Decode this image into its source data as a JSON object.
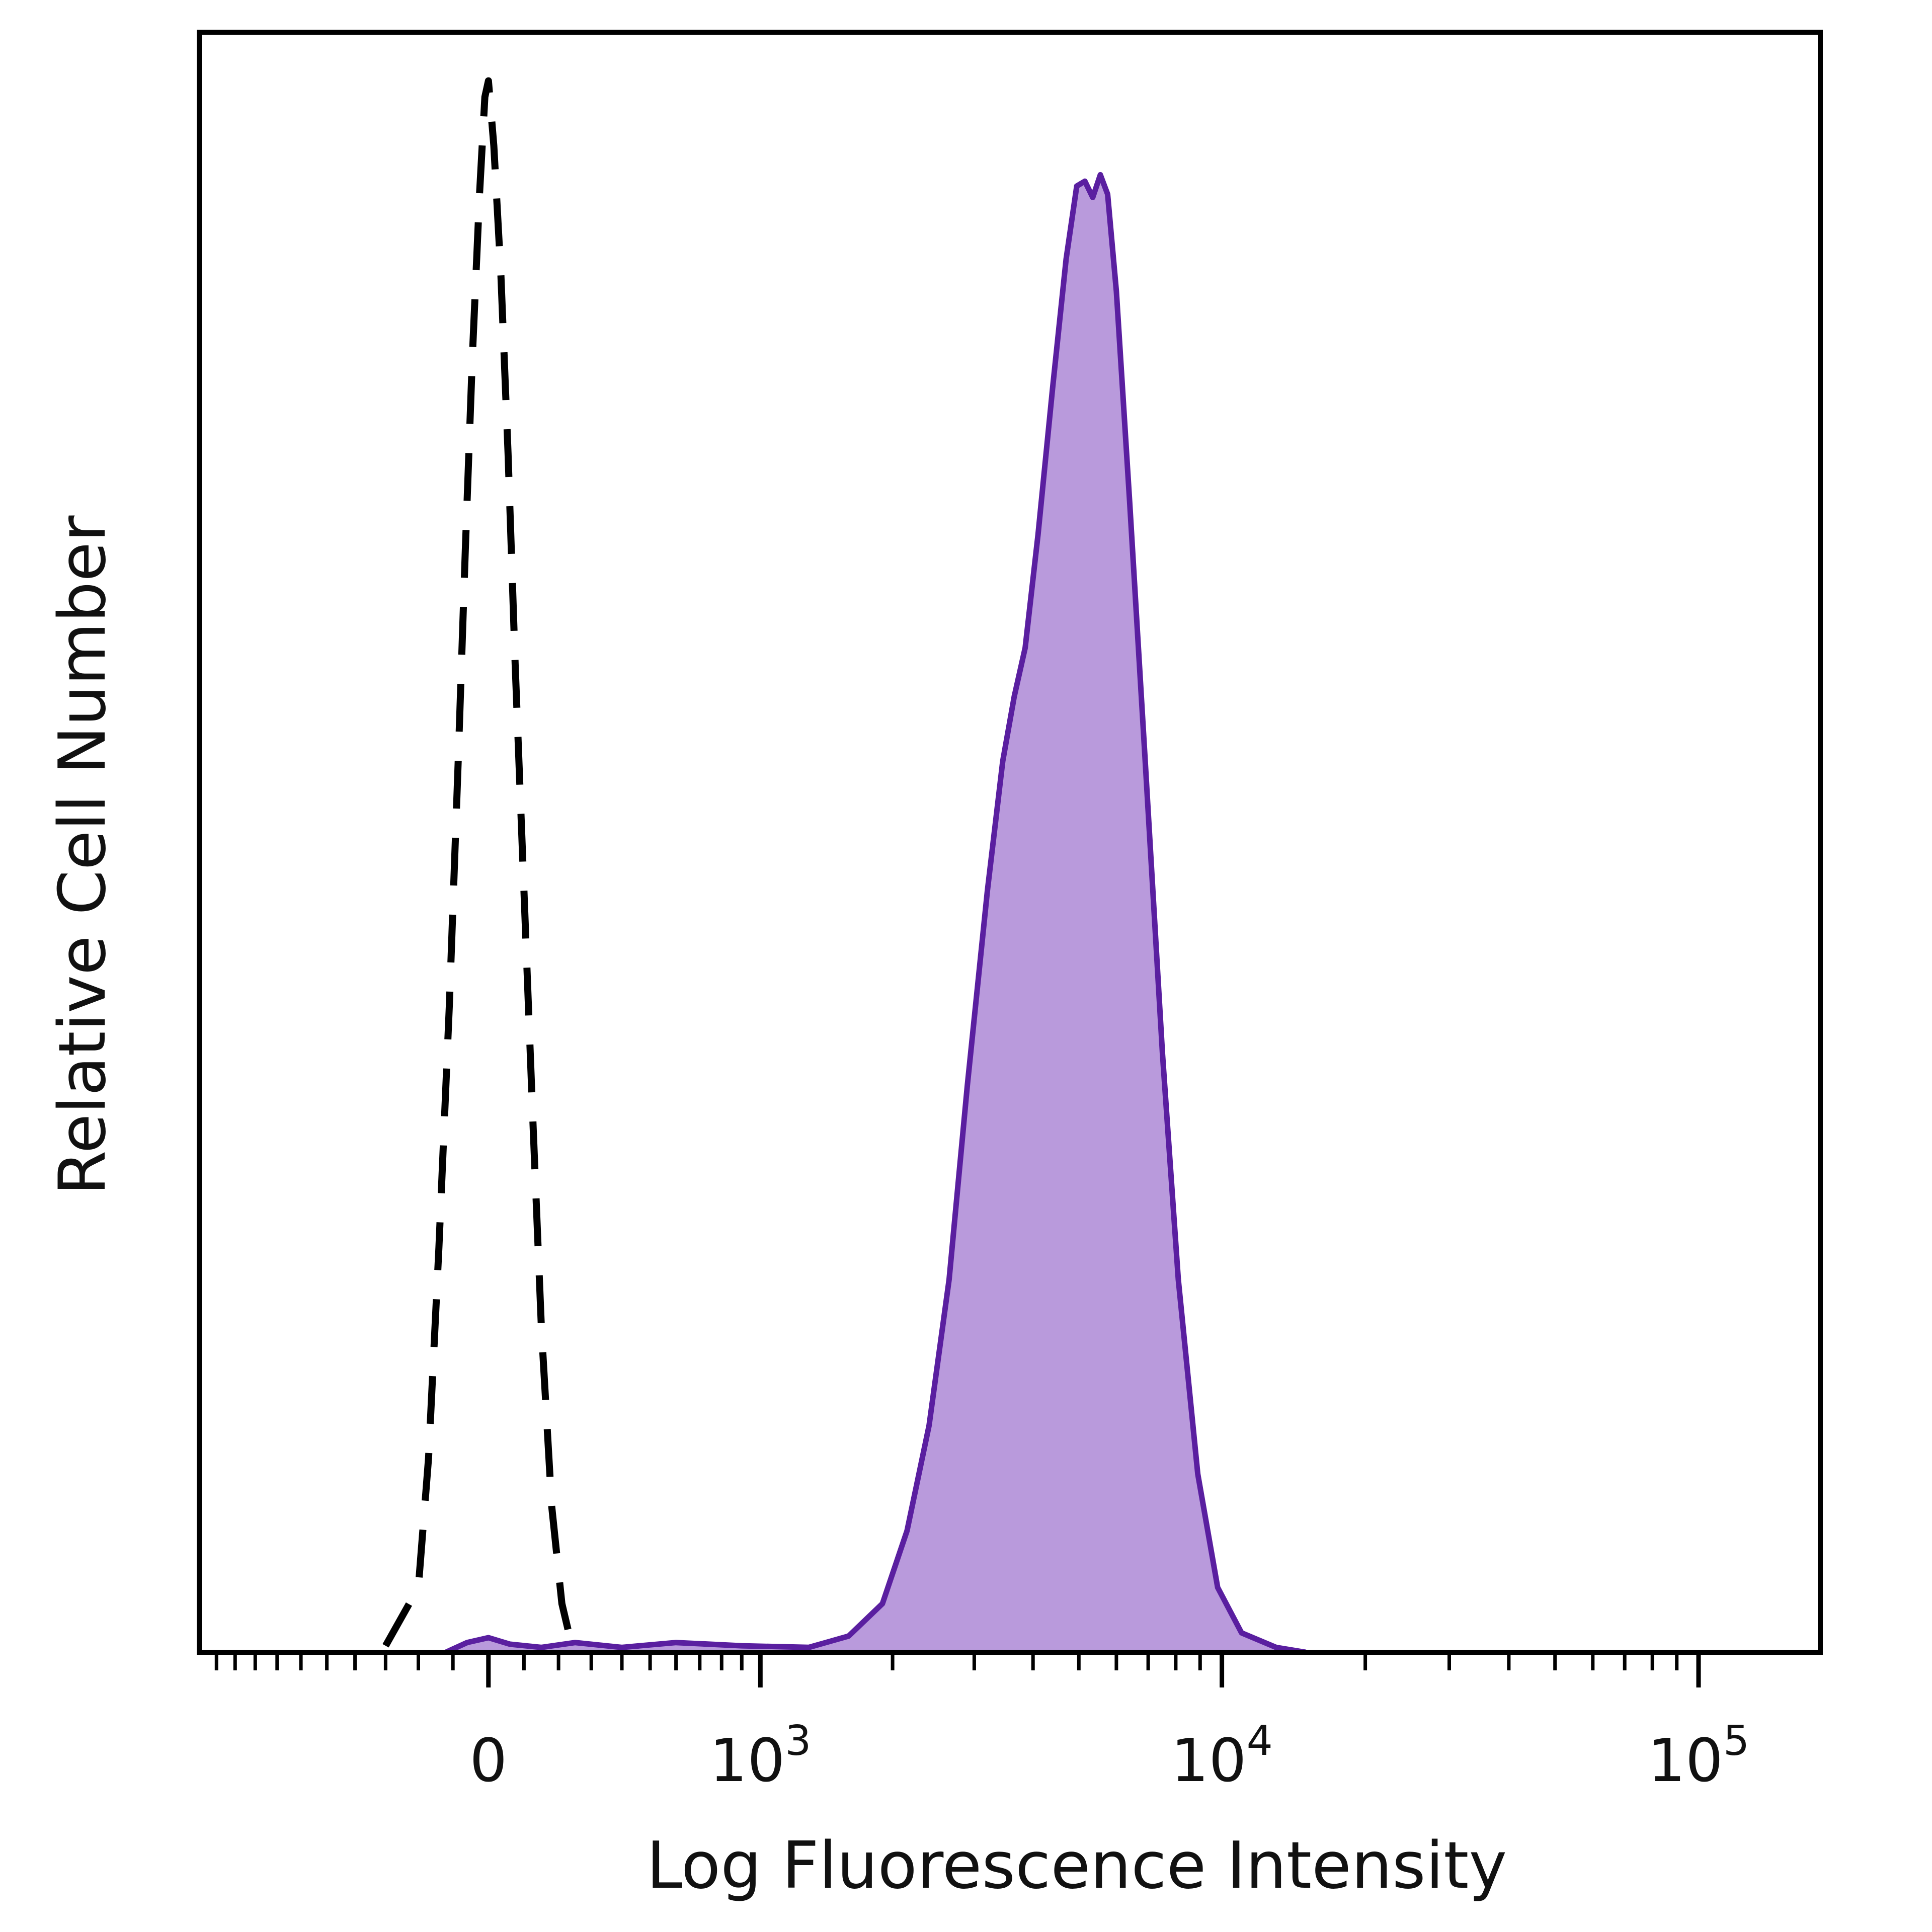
{
  "chart_data": {
    "type": "area",
    "title": "",
    "xlabel": "Log Fluorescence Intensity",
    "ylabel": "Relative Cell Number",
    "x_scale": "biexponential",
    "xlim": [
      -1100,
      180000
    ],
    "ylim": [
      0,
      100
    ],
    "grid": false,
    "legend": "none",
    "x_ticks": [
      {
        "value": 0,
        "base": "0",
        "exp": ""
      },
      {
        "value": 1000,
        "base": "10",
        "exp": "3"
      },
      {
        "value": 10000,
        "base": "10",
        "exp": "4"
      },
      {
        "value": 100000,
        "base": "10",
        "exp": "5"
      }
    ],
    "series": [
      {
        "style": "dashed-outline",
        "color": "#000000",
        "points": [
          [
            -300,
            0.4
          ],
          [
            -200,
            4
          ],
          [
            -170,
            12
          ],
          [
            -140,
            25
          ],
          [
            -110,
            40
          ],
          [
            -85,
            55
          ],
          [
            -65,
            68
          ],
          [
            -45,
            80
          ],
          [
            -25,
            90
          ],
          [
            -10,
            96
          ],
          [
            0,
            97
          ],
          [
            15,
            93
          ],
          [
            35,
            85
          ],
          [
            55,
            74
          ],
          [
            75,
            61
          ],
          [
            100,
            47
          ],
          [
            125,
            33
          ],
          [
            150,
            20
          ],
          [
            180,
            9
          ],
          [
            210,
            3
          ],
          [
            240,
            0.4
          ]
        ]
      },
      {
        "style": "filled",
        "color": "#5a1fa0",
        "fill": "#b99adc",
        "points": [
          [
            -120,
            0
          ],
          [
            -60,
            0.6
          ],
          [
            0,
            0.9
          ],
          [
            60,
            0.5
          ],
          [
            150,
            0.3
          ],
          [
            250,
            0.6
          ],
          [
            400,
            0.3
          ],
          [
            600,
            0.6
          ],
          [
            900,
            0.4
          ],
          [
            1300,
            0.3
          ],
          [
            1600,
            1
          ],
          [
            1900,
            3
          ],
          [
            2150,
            7.5
          ],
          [
            2400,
            14
          ],
          [
            2650,
            23
          ],
          [
            2900,
            35
          ],
          [
            3200,
            47
          ],
          [
            3450,
            55
          ],
          [
            3650,
            59
          ],
          [
            3850,
            62
          ],
          [
            4100,
            69
          ],
          [
            4400,
            78
          ],
          [
            4700,
            86
          ],
          [
            4950,
            90.5
          ],
          [
            5150,
            90.8
          ],
          [
            5350,
            89.8
          ],
          [
            5550,
            91.2
          ],
          [
            5750,
            90
          ],
          [
            6000,
            84
          ],
          [
            6400,
            71
          ],
          [
            6900,
            55
          ],
          [
            7500,
            37
          ],
          [
            8100,
            23
          ],
          [
            8900,
            11
          ],
          [
            9800,
            4
          ],
          [
            11000,
            1.2
          ],
          [
            13000,
            0.3
          ],
          [
            15000,
            0
          ]
        ]
      }
    ]
  }
}
